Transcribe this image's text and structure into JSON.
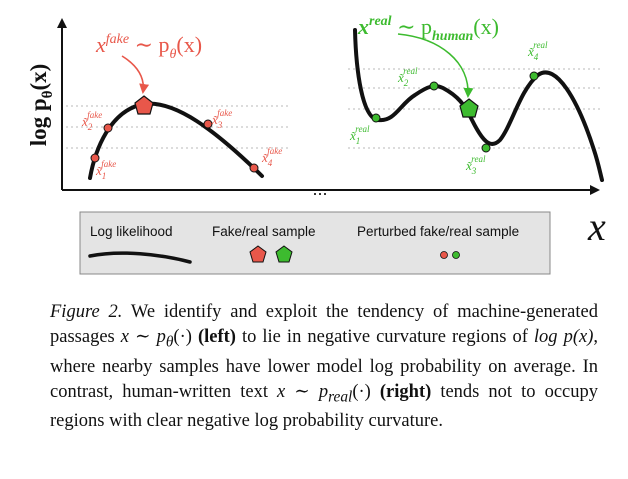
{
  "colors": {
    "fake": "#e8574a",
    "real": "#3dbb2f",
    "curve": "#111111",
    "guide": "#b9b9b9",
    "legend_bg": "#e4e4e4"
  },
  "axes": {
    "ylabel_base": "log p",
    "ylabel_sub": "θ",
    "ylabel_arg": "(x)",
    "xlabel": "x",
    "ellipsis": "..."
  },
  "left_panel": {
    "title_base": "x",
    "title_sup": "fake",
    "title_rest": " ∼ p",
    "title_sub": "θ",
    "title_arg": "(x)",
    "perturbed_labels": [
      {
        "base": "x̃",
        "sub": "1",
        "sup": "fake"
      },
      {
        "base": "x̃",
        "sub": "2",
        "sup": "fake"
      },
      {
        "base": "x̃",
        "sub": "3",
        "sup": "fake"
      },
      {
        "base": "x̃",
        "sub": "4",
        "sup": "fake"
      }
    ]
  },
  "right_panel": {
    "title_base": "x",
    "title_sup": "real",
    "title_rest": " ∼ p",
    "title_sub": "human",
    "title_arg": "(x)",
    "perturbed_labels": [
      {
        "base": "x̃",
        "sub": "1",
        "sup": "real"
      },
      {
        "base": "x̃",
        "sub": "2",
        "sup": "real"
      },
      {
        "base": "x̃",
        "sub": "3",
        "sup": "real"
      },
      {
        "base": "x̃",
        "sub": "4",
        "sup": "real"
      }
    ]
  },
  "legend": {
    "log_likelihood": "Log likelihood",
    "sample": "Fake/real sample",
    "perturbed": "Perturbed fake/real sample"
  },
  "caption": {
    "label": "Figure 2.",
    "seg1": " We identify and exploit the tendency of machine-generated passages ",
    "math1": "x ∼ p",
    "math1_sub": "θ",
    "math1_end": "(·)",
    "bold1": "(left)",
    "seg2": " to lie in negative curvature regions of ",
    "math2": "log p(x)",
    "seg3": ", where nearby samples have lower model log probability on average.  In contrast, human-written text ",
    "math3": "x ∼ p",
    "math3_sub": "real",
    "math3_end": "(·)",
    "bold2": "(right)",
    "seg4": " tends not to occupy regions with clear negative log probability curvature."
  }
}
